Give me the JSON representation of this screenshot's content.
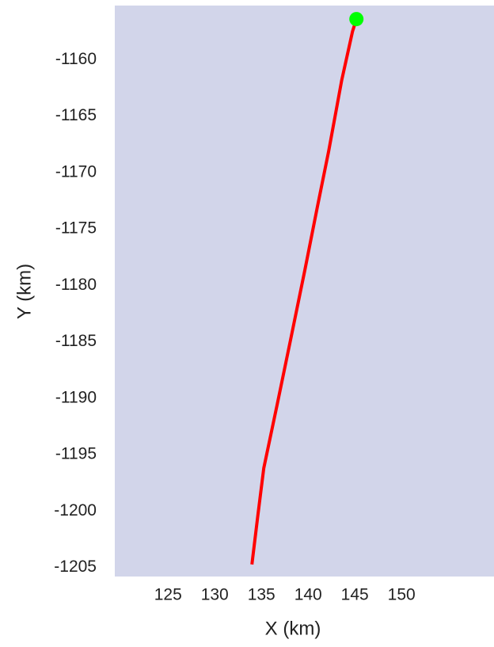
{
  "chart_data": {
    "type": "line",
    "xlabel": "X (km)",
    "ylabel": "Y (km)",
    "x": [
      133.98,
      134.6,
      135.25,
      136.7,
      138.2,
      139.66,
      141.0,
      142.2,
      143.6,
      144.75,
      145.17
    ],
    "values": [
      -1204.73,
      -1200.5,
      -1196.2,
      -1190.5,
      -1184.5,
      -1178.6,
      -1173.0,
      -1168.1,
      -1161.8,
      -1157.5,
      -1156.4
    ],
    "color": "#ff0000",
    "marker": {
      "x": 145.17,
      "y": -1156.4,
      "color": "#00ff00"
    },
    "background": "#d2d5ea",
    "xlim": [
      119.3,
      159.9
    ],
    "ylim": [
      -1205.8,
      -1155.2
    ],
    "xticks": [
      125,
      130,
      135,
      140,
      145,
      150
    ],
    "yticks": [
      -1160,
      -1165,
      -1170,
      -1175,
      -1180,
      -1185,
      -1190,
      -1195,
      -1200,
      -1205
    ]
  }
}
